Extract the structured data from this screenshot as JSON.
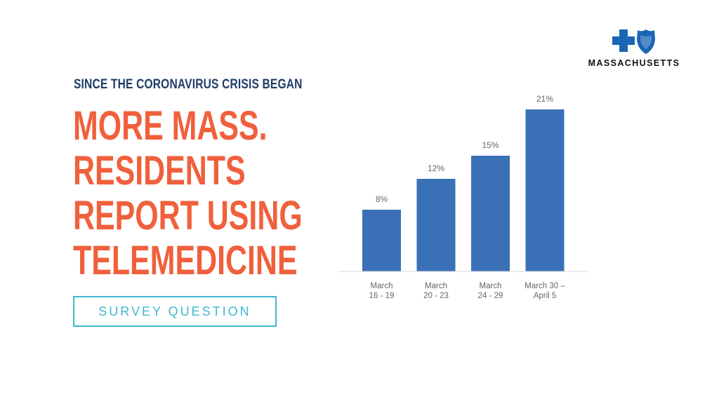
{
  "subtitle": "SINCE THE CORONAVIRUS CRISIS BEGAN",
  "headline": [
    "MORE MASS.",
    "RESIDENTS",
    "REPORT USING",
    "TELEMEDICINE"
  ],
  "button": {
    "label": "SURVEY QUESTION"
  },
  "logo": {
    "text": "MASSACHUSETTS",
    "icons": [
      "blue-cross-icon",
      "blue-shield-icon"
    ]
  },
  "colors": {
    "bar": "#3a70b5",
    "headline": "#f0603c",
    "subtitle": "#1f3d66",
    "button": "#3fb8d2"
  },
  "chart_data": {
    "type": "bar",
    "categories": [
      [
        "March",
        "16 - 19"
      ],
      [
        "March",
        "20 - 23"
      ],
      [
        "March",
        "24 - 29"
      ],
      [
        "March 30 –",
        "April 5"
      ]
    ],
    "values": [
      8,
      12,
      15,
      21
    ],
    "value_labels": [
      "8%",
      "12%",
      "15%",
      "21%"
    ],
    "ylim": [
      0,
      21
    ],
    "grid": false,
    "legend": "none"
  }
}
